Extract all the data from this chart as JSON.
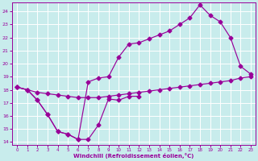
{
  "xlabel": "Windchill (Refroidissement éolien,°C)",
  "bg_color": "#c8ecec",
  "line_color": "#990099",
  "grid_color": "#ffffff",
  "xlim": [
    -0.5,
    23.5
  ],
  "ylim": [
    13.8,
    24.7
  ],
  "xticks": [
    0,
    1,
    2,
    3,
    4,
    5,
    6,
    7,
    8,
    9,
    10,
    11,
    12,
    13,
    14,
    15,
    16,
    17,
    18,
    19,
    20,
    21,
    22,
    23
  ],
  "yticks": [
    14,
    15,
    16,
    17,
    18,
    19,
    20,
    21,
    22,
    23,
    24
  ],
  "curve_bottom_x": [
    0,
    1,
    2,
    3,
    4,
    5,
    6,
    7,
    8,
    9,
    10,
    11,
    12
  ],
  "curve_bottom_y": [
    18.2,
    18.0,
    17.2,
    16.1,
    14.8,
    14.6,
    14.2,
    14.2,
    15.3,
    17.3,
    17.2,
    17.5,
    17.5
  ],
  "curve_upper_x": [
    0,
    1,
    2,
    3,
    4,
    5,
    6,
    7,
    8,
    9,
    10,
    11,
    12,
    13,
    14,
    15,
    16,
    17,
    18,
    19,
    20,
    21,
    22,
    23
  ],
  "curve_upper_y": [
    18.2,
    18.0,
    17.2,
    16.1,
    14.8,
    14.6,
    14.2,
    18.6,
    18.9,
    19.0,
    20.5,
    21.5,
    21.6,
    21.9,
    22.2,
    22.5,
    23.0,
    23.5,
    24.5,
    23.7,
    23.2,
    22.0,
    19.8,
    19.2
  ],
  "curve_base_x": [
    0,
    1,
    2,
    3,
    4,
    5,
    6,
    7,
    8,
    9,
    10,
    11,
    12,
    13,
    14,
    15,
    16,
    17,
    18,
    19,
    20,
    21,
    22,
    23
  ],
  "curve_base_y": [
    18.2,
    18.0,
    17.8,
    17.7,
    17.6,
    17.5,
    17.4,
    17.4,
    17.4,
    17.5,
    17.6,
    17.7,
    17.8,
    17.9,
    18.0,
    18.1,
    18.2,
    18.3,
    18.4,
    18.5,
    18.6,
    18.7,
    18.9,
    19.0
  ]
}
